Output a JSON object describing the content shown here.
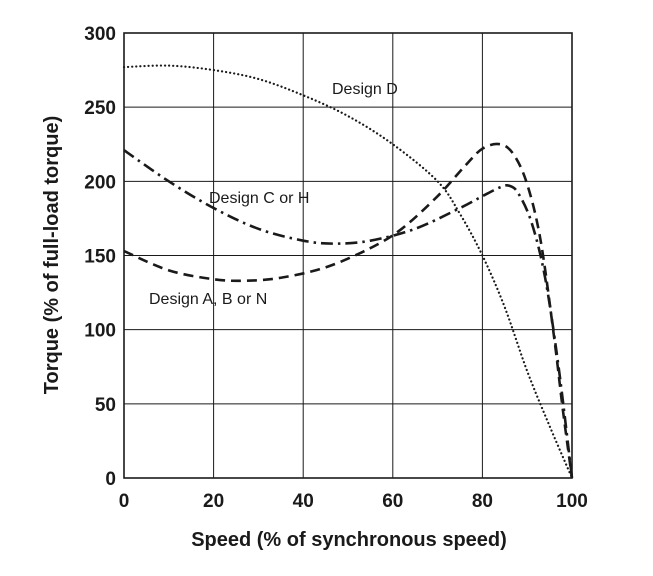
{
  "chart_data": {
    "type": "line",
    "xlabel": "Speed (% of synchronous speed)",
    "ylabel": "Torque (% of full-load torque)",
    "xlim": [
      0,
      100
    ],
    "ylim": [
      0,
      300
    ],
    "xticks": [
      0,
      20,
      40,
      60,
      80,
      100
    ],
    "yticks": [
      0,
      50,
      100,
      150,
      200,
      250,
      300
    ],
    "grid": true,
    "series": [
      {
        "name": "Design A, B or N",
        "line_style": "dashed",
        "x": [
          0,
          10,
          20,
          27,
          35,
          45,
          55,
          62,
          70,
          76,
          80,
          84,
          87,
          90,
          93,
          96,
          98,
          100
        ],
        "y": [
          153,
          140,
          134,
          133,
          135,
          142,
          155,
          168,
          190,
          210,
          222,
          225,
          218,
          198,
          160,
          95,
          45,
          0
        ]
      },
      {
        "name": "Design C or H",
        "line_style": "dash-dot",
        "x": [
          0,
          10,
          20,
          30,
          40,
          47,
          55,
          65,
          75,
          80,
          84,
          86,
          88,
          91,
          94,
          97,
          100
        ],
        "y": [
          221,
          200,
          182,
          168,
          160,
          158,
          160,
          168,
          182,
          190,
          196,
          197,
          192,
          172,
          135,
          75,
          0
        ]
      },
      {
        "name": "Design D",
        "line_style": "dotted",
        "x": [
          0,
          10,
          20,
          30,
          40,
          50,
          60,
          70,
          75,
          80,
          85,
          90,
          95,
          100
        ],
        "y": [
          277,
          278,
          275,
          269,
          258,
          244,
          225,
          200,
          178,
          150,
          115,
          72,
          35,
          0
        ]
      }
    ]
  }
}
